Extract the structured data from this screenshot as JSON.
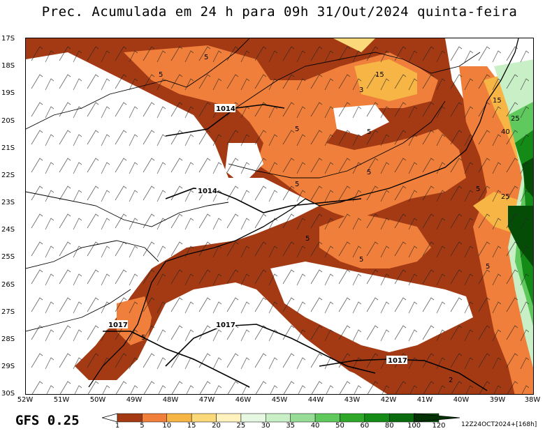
{
  "title": "Prec. Acumulada em 24 h para 09h 31/Out/2024 quinta-feira",
  "model": "GFS 0.25",
  "run_info": "12Z24OCT2024+[168h]",
  "lat_labels": [
    "17S",
    "18S",
    "19S",
    "20S",
    "21S",
    "22S",
    "23S",
    "24S",
    "25S",
    "26S",
    "27S",
    "28S",
    "29S",
    "30S"
  ],
  "lon_labels": [
    "52W",
    "51W",
    "50W",
    "49W",
    "48W",
    "47W",
    "46W",
    "45W",
    "44W",
    "43W",
    "42W",
    "41W",
    "40W",
    "39W",
    "38W"
  ],
  "colorbar": {
    "labels": [
      "1",
      "5",
      "10",
      "15",
      "20",
      "25",
      "30",
      "35",
      "40",
      "50",
      "60",
      "80",
      "100",
      "120"
    ],
    "colors": [
      "#a33a14",
      "#ef7f3a",
      "#f7b545",
      "#fbd87a",
      "#fff2bf",
      "#e6f7e2",
      "#c8efc6",
      "#98dd97",
      "#60c95e",
      "#2fa829",
      "#148a17",
      "#0a6a0e",
      "#054d07",
      "#033304"
    ]
  },
  "contours": {
    "isobars": [
      "1014",
      "1014",
      "1017",
      "1017",
      "1017"
    ],
    "precip": [
      "5",
      "5",
      "5",
      "5",
      "5",
      "5",
      "5",
      "5",
      "5",
      "5",
      "3",
      "15",
      "15",
      "25",
      "40",
      "25",
      "2"
    ]
  }
}
